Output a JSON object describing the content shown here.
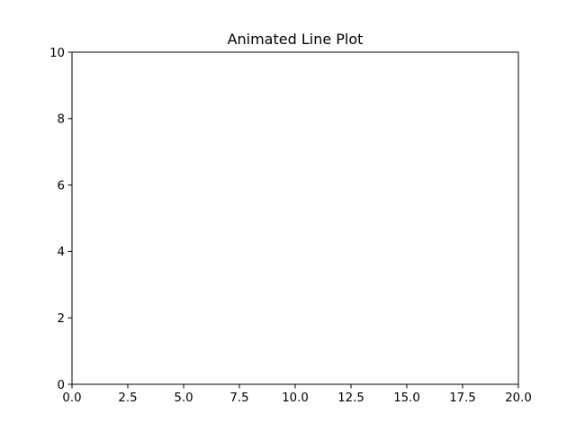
{
  "chart_data": {
    "type": "line",
    "title": "Animated Line Plot",
    "xlabel": "",
    "ylabel": "",
    "xlim": [
      0,
      20
    ],
    "ylim": [
      0,
      10
    ],
    "xticks": [
      0,
      2.5,
      5,
      7.5,
      10,
      12.5,
      15,
      17.5,
      20
    ],
    "xtick_labels": [
      "0.0",
      "2.5",
      "5.0",
      "7.5",
      "10.0",
      "12.5",
      "15.0",
      "17.5",
      "20.0"
    ],
    "yticks": [
      0,
      2,
      4,
      6,
      8,
      10
    ],
    "ytick_labels": [
      "0",
      "2",
      "4",
      "6",
      "8",
      "10"
    ],
    "grid": false,
    "legend": "none",
    "series": [
      {
        "values": []
      }
    ],
    "colors": {
      "axis": "#000000",
      "background": "#ffffff"
    }
  }
}
